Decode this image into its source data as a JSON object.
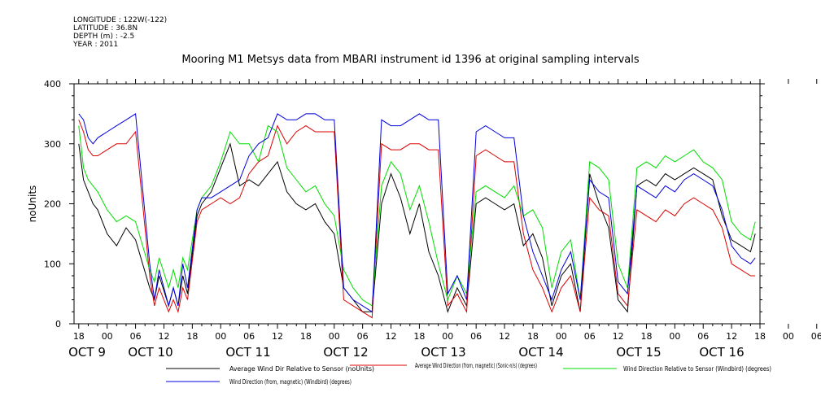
{
  "header": {
    "meta_lines": [
      "LONGITUDE : 122W(-122)",
      "LATITUDE : 36.8N",
      "DEPTH (m) : -2.5",
      "YEAR : 2011"
    ]
  },
  "chart_data": {
    "type": "line",
    "title": "Mooring M1 Metsys data from MBARI instrument id 1396 at original sampling intervals",
    "ylabel": "noUnits",
    "xlabel": "",
    "ylim": [
      0,
      400
    ],
    "yticks": [
      0,
      100,
      200,
      300,
      400
    ],
    "hour_ticks": [
      "18",
      "00",
      "06",
      "12",
      "18",
      "00",
      "06",
      "12",
      "18",
      "00",
      "06",
      "12",
      "18",
      "00",
      "06",
      "12",
      "18",
      "00",
      "06",
      "12",
      "18",
      "00",
      "06",
      "12",
      "18",
      "00",
      "06",
      "12",
      "18",
      "00",
      "06",
      "12"
    ],
    "day_labels": [
      "OCT  9",
      "OCT 10",
      "OCT 11",
      "OCT 12",
      "OCT 13",
      "OCT 14",
      "OCT 15",
      "OCT 16"
    ],
    "x_range_hours": [
      -7,
      138
    ],
    "grid": false,
    "legend_position": "bottom",
    "series": [
      {
        "name": "Average Wind Dir Relative to Sensor (noUnits)",
        "color": "#000000",
        "x": [
          -6,
          -5,
          -4,
          -3,
          -2,
          0,
          2,
          4,
          6,
          9,
          10,
          11,
          13,
          14,
          15,
          16,
          17,
          19,
          20,
          22,
          24,
          26,
          28,
          30,
          32,
          34,
          36,
          38,
          40,
          42,
          44,
          46,
          48,
          50,
          52,
          54,
          56,
          58,
          60,
          62,
          64,
          66,
          68,
          70,
          72,
          74,
          76,
          78,
          80,
          82,
          84,
          86,
          88,
          90,
          92,
          94,
          96,
          98,
          100,
          102,
          104,
          106,
          108,
          110,
          112,
          114,
          116,
          118,
          120,
          122,
          124,
          126,
          128,
          130,
          132,
          134,
          136,
          137
        ],
        "y": [
          300,
          240,
          220,
          200,
          190,
          150,
          130,
          160,
          140,
          60,
          40,
          80,
          30,
          60,
          30,
          80,
          50,
          180,
          200,
          220,
          260,
          300,
          230,
          240,
          230,
          250,
          270,
          220,
          200,
          190,
          200,
          170,
          150,
          60,
          40,
          20,
          20,
          200,
          250,
          210,
          150,
          200,
          120,
          80,
          20,
          60,
          30,
          200,
          210,
          200,
          190,
          200,
          130,
          150,
          110,
          30,
          80,
          100,
          20,
          250,
          200,
          160,
          40,
          20,
          230,
          240,
          230,
          250,
          240,
          250,
          260,
          250,
          240,
          180,
          140,
          130,
          120,
          150
        ]
      },
      {
        "name": "Average Wind Direction (from, magnetic) (Sonic-n/s) (degrees)",
        "color": "#dd0000",
        "x": [
          -6,
          -5,
          -4,
          -3,
          -2,
          0,
          2,
          4,
          6,
          9,
          10,
          11,
          13,
          14,
          15,
          16,
          17,
          19,
          20,
          22,
          24,
          26,
          28,
          30,
          32,
          34,
          36,
          38,
          40,
          42,
          44,
          46,
          48,
          50,
          52,
          54,
          56,
          58,
          60,
          62,
          64,
          66,
          68,
          70,
          72,
          74,
          76,
          78,
          80,
          82,
          84,
          86,
          88,
          90,
          92,
          94,
          96,
          98,
          100,
          102,
          104,
          106,
          108,
          110,
          112,
          114,
          116,
          118,
          120,
          122,
          124,
          126,
          128,
          130,
          132,
          134,
          136,
          137
        ],
        "y": [
          340,
          320,
          290,
          280,
          280,
          290,
          300,
          300,
          320,
          80,
          30,
          60,
          20,
          40,
          20,
          60,
          40,
          170,
          190,
          200,
          210,
          200,
          210,
          250,
          270,
          280,
          330,
          300,
          320,
          330,
          320,
          320,
          320,
          40,
          30,
          20,
          10,
          300,
          290,
          290,
          300,
          300,
          290,
          290,
          30,
          50,
          20,
          280,
          290,
          280,
          270,
          270,
          150,
          90,
          60,
          20,
          60,
          80,
          20,
          210,
          190,
          180,
          50,
          30,
          190,
          180,
          170,
          190,
          180,
          200,
          210,
          200,
          190,
          160,
          100,
          90,
          80,
          80
        ]
      },
      {
        "name": "Wind Direction Relative to Sensor (Windbird) (degrees)",
        "color": "#00dd00",
        "x": [
          -6,
          -5,
          -4,
          -3,
          -2,
          0,
          2,
          4,
          6,
          9,
          10,
          11,
          13,
          14,
          15,
          16,
          17,
          19,
          20,
          22,
          24,
          26,
          28,
          30,
          32,
          34,
          36,
          38,
          40,
          42,
          44,
          46,
          48,
          50,
          52,
          54,
          56,
          58,
          60,
          62,
          64,
          66,
          68,
          70,
          72,
          74,
          76,
          78,
          80,
          82,
          84,
          86,
          88,
          90,
          92,
          94,
          96,
          98,
          100,
          102,
          104,
          106,
          108,
          110,
          112,
          114,
          116,
          118,
          120,
          122,
          124,
          126,
          128,
          130,
          132,
          134,
          136,
          137
        ],
        "y": [
          330,
          260,
          240,
          230,
          220,
          190,
          170,
          180,
          170,
          90,
          70,
          110,
          60,
          90,
          60,
          110,
          90,
          190,
          210,
          230,
          270,
          320,
          300,
          300,
          270,
          330,
          320,
          260,
          240,
          220,
          230,
          200,
          180,
          90,
          60,
          40,
          30,
          230,
          270,
          250,
          190,
          230,
          170,
          100,
          40,
          80,
          50,
          220,
          230,
          220,
          210,
          230,
          180,
          190,
          160,
          60,
          120,
          140,
          40,
          270,
          260,
          240,
          100,
          60,
          260,
          270,
          260,
          280,
          270,
          280,
          290,
          270,
          260,
          240,
          170,
          150,
          140,
          170
        ]
      },
      {
        "name": "Wind Direction (from, magnetic) (Windbird) (degrees)",
        "color": "#0000dd",
        "x": [
          -6,
          -5,
          -4,
          -3,
          -2,
          0,
          2,
          4,
          6,
          9,
          10,
          11,
          13,
          14,
          15,
          16,
          17,
          19,
          20,
          22,
          24,
          26,
          28,
          30,
          32,
          34,
          36,
          38,
          40,
          42,
          44,
          46,
          48,
          50,
          52,
          54,
          56,
          58,
          60,
          62,
          64,
          66,
          68,
          70,
          72,
          74,
          76,
          78,
          80,
          82,
          84,
          86,
          88,
          90,
          92,
          94,
          96,
          98,
          100,
          102,
          104,
          106,
          108,
          110,
          112,
          114,
          116,
          118,
          120,
          122,
          124,
          126,
          128,
          130,
          132,
          134,
          136,
          137
        ],
        "y": [
          350,
          340,
          310,
          300,
          310,
          320,
          330,
          340,
          350,
          100,
          40,
          90,
          30,
          60,
          30,
          100,
          60,
          190,
          210,
          210,
          220,
          230,
          240,
          280,
          300,
          310,
          350,
          340,
          340,
          350,
          350,
          340,
          340,
          60,
          40,
          30,
          20,
          340,
          330,
          330,
          340,
          350,
          340,
          340,
          50,
          80,
          40,
          320,
          330,
          320,
          310,
          310,
          180,
          120,
          80,
          40,
          90,
          120,
          40,
          240,
          220,
          210,
          70,
          50,
          230,
          220,
          210,
          230,
          220,
          240,
          250,
          240,
          230,
          190,
          130,
          110,
          100,
          110
        ]
      }
    ]
  }
}
